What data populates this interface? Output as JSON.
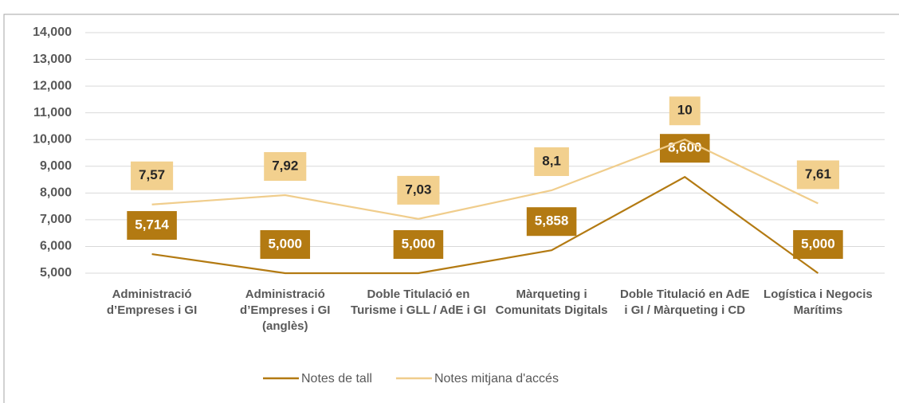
{
  "chart_data": {
    "type": "line",
    "categories": [
      "Administració d’Empreses i GI",
      "Administració d’Empreses i GI (anglès)",
      "Doble Titulació en Turisme i GLL / AdE i GI",
      "Màrqueting i Comunitats Digitals",
      "Doble Titulació en AdE i GI / Màrqueting i CD",
      "Logística i Negocis Marítims"
    ],
    "series": [
      {
        "name": "Notes de tall",
        "color": "#b37a12",
        "values": [
          5.714,
          5,
          5,
          5.858,
          8.6,
          5
        ],
        "value_labels": [
          "5,714",
          "5,000",
          "5,000",
          "5,858",
          "8,600",
          "5,000"
        ]
      },
      {
        "name": "Notes mitjana d'accés",
        "color": "#f0cd8c",
        "values": [
          7.57,
          7.92,
          7.03,
          8.1,
          10,
          7.61
        ],
        "value_labels": [
          "7,57",
          "7,92",
          "7,03",
          "8,1",
          "10",
          "7,61"
        ]
      }
    ],
    "ylim": [
      5,
      14
    ],
    "yticks": [
      {
        "value": 5,
        "label": "5,000"
      },
      {
        "value": 6,
        "label": "6,000"
      },
      {
        "value": 7,
        "label": "7,000"
      },
      {
        "value": 8,
        "label": "8,000"
      },
      {
        "value": 9,
        "label": "9,000"
      },
      {
        "value": 10,
        "label": "10,000"
      },
      {
        "value": 11,
        "label": "11,000"
      },
      {
        "value": 12,
        "label": "12,000"
      },
      {
        "value": 13,
        "label": "13,000"
      },
      {
        "value": 14,
        "label": "14,000"
      }
    ],
    "grid": true,
    "legend": "bottom"
  }
}
